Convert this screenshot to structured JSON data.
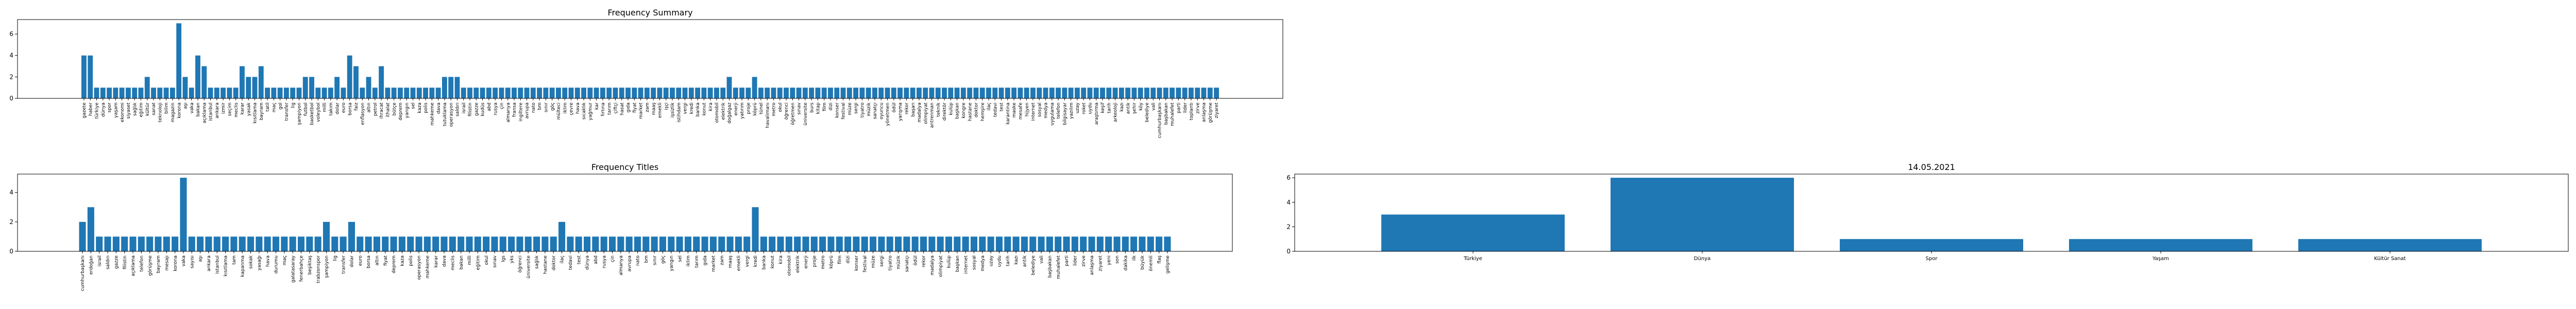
{
  "chart_data": [
    {
      "type": "bar",
      "title": "Frequency Summary",
      "color": "#1f77b4",
      "categories": [
        "gazete",
        "haber",
        "türkiye",
        "dünya",
        "spor",
        "yaşam",
        "ekonomi",
        "siyaset",
        "sağlık",
        "eğitim",
        "kültür",
        "sanat",
        "teknoloji",
        "bilim",
        "magazin",
        "korona",
        "aşı",
        "vaka",
        "bakan",
        "açıklama",
        "istanbul",
        "ankara",
        "izmir",
        "seçim",
        "meclis",
        "karar",
        "yasak",
        "kısıtlama",
        "bayram",
        "tatil",
        "maç",
        "gol",
        "transfer",
        "lig",
        "şampiyon",
        "futbol",
        "basketbol",
        "voleybol",
        "milli",
        "takım",
        "dolar",
        "euro",
        "borsa",
        "faiz",
        "enflasyon",
        "altın",
        "petrol",
        "ihracat",
        "ithalat",
        "bütçe",
        "deprem",
        "yangın",
        "sel",
        "kaza",
        "polis",
        "mahkeme",
        "dava",
        "tutuklama",
        "operasyon",
        "saldırı",
        "israil",
        "filistin",
        "gazze",
        "kudüs",
        "abd",
        "rusya",
        "çin",
        "almanya",
        "fransa",
        "ingiltere",
        "avrupa",
        "nato",
        "bm",
        "sınır",
        "göç",
        "mülteci",
        "iklim",
        "çevre",
        "hava",
        "sıcaklık",
        "yağmur",
        "kar",
        "fırtına",
        "tarım",
        "çiftçi",
        "hasat",
        "gıda",
        "fiyat",
        "market",
        "zam",
        "maaş",
        "emekli",
        "işçi",
        "işsizlik",
        "istihdam",
        "vergi",
        "kredi",
        "banka",
        "konut",
        "kira",
        "otomobil",
        "elektrik",
        "doğalgaz",
        "enerji",
        "yatırım",
        "proje",
        "köprü",
        "tünel",
        "havalimanı",
        "metro",
        "okul",
        "öğrenci",
        "öğretmen",
        "sınav",
        "üniversite",
        "burs",
        "kitap",
        "film",
        "dizi",
        "konser",
        "festival",
        "müze",
        "sergi",
        "tiyatro",
        "müzik",
        "sanatçı",
        "oyuncu",
        "yönetmen",
        "ödül",
        "yarışma",
        "rekor",
        "başarı",
        "madalya",
        "olimpiyat",
        "antrenman",
        "teknik",
        "direktör",
        "kulüp",
        "başkan",
        "kongre",
        "hastane",
        "doktor",
        "hemşire",
        "ilaç",
        "tedavi",
        "test",
        "karantina",
        "maske",
        "mesafe",
        "hijyen",
        "internet",
        "sosyal",
        "medya",
        "uygulama",
        "telefon",
        "bilgisayar",
        "yazılım",
        "uzay",
        "roket",
        "uydu",
        "araştırma",
        "keşif",
        "tarih",
        "arkeoloji",
        "kazı",
        "antik",
        "şehir",
        "köy",
        "belediye",
        "vali",
        "cumhurbaşkanı",
        "başbakan",
        "muhalefet",
        "parti",
        "lider",
        "toplantı",
        "zirve",
        "anlaşma",
        "görüşme",
        "ziyaret"
      ],
      "values": [
        4,
        4,
        1,
        1,
        1,
        1,
        1,
        1,
        1,
        1,
        2,
        1,
        1,
        1,
        1,
        7,
        2,
        1,
        4,
        3,
        1,
        1,
        1,
        1,
        1,
        3,
        2,
        2,
        3,
        1,
        1,
        1,
        1,
        1,
        1,
        2,
        2,
        1,
        1,
        1,
        2,
        1,
        4,
        3,
        1,
        2,
        1,
        3,
        1,
        1,
        1,
        1,
        1,
        1,
        1,
        1,
        1,
        2,
        2,
        2,
        1,
        1,
        1,
        1,
        1,
        1,
        1,
        1,
        1,
        1,
        1,
        1,
        1,
        1,
        1,
        1,
        1,
        1,
        1,
        1,
        1,
        1,
        1,
        1,
        1,
        1,
        1,
        1,
        1,
        1,
        1,
        1,
        1,
        1,
        1,
        1,
        1,
        1,
        1,
        1,
        1,
        1,
        2,
        1,
        1,
        1,
        2,
        1,
        1,
        1,
        1,
        1,
        1,
        1,
        1,
        1,
        1,
        1,
        1,
        1,
        1,
        1,
        1,
        1,
        1,
        1,
        1,
        1,
        1,
        1,
        1,
        1,
        1,
        1,
        1,
        1,
        1,
        1,
        1,
        1,
        1,
        1,
        1,
        1,
        1,
        1,
        1,
        1,
        1,
        1,
        1,
        1,
        1,
        1,
        1,
        1,
        1,
        1,
        1,
        1,
        1,
        1,
        1,
        1,
        1,
        1,
        1,
        1,
        1,
        1,
        1,
        1,
        1,
        1,
        1,
        1,
        1,
        1,
        1,
        1
      ],
      "ylim": [
        0,
        7.35
      ],
      "yticks": [
        0,
        2,
        4,
        6
      ]
    },
    {
      "type": "bar",
      "title": "Frequency Titles",
      "color": "#1f77b4",
      "categories": [
        "cumhurbaşkanı",
        "erdoğan",
        "israil",
        "saldırı",
        "gazze",
        "filistin",
        "açıklama",
        "telefon",
        "görüşme",
        "bayram",
        "mesajı",
        "korona",
        "vaka",
        "sayısı",
        "aşı",
        "ankara",
        "istanbul",
        "kısıtlama",
        "tam",
        "kapanma",
        "sokak",
        "yasağı",
        "hava",
        "durumu",
        "maç",
        "galatasaray",
        "fenerbahçe",
        "beşiktaş",
        "trabzonspor",
        "şampiyon",
        "lig",
        "transfer",
        "dolar",
        "euro",
        "borsa",
        "altın",
        "fiyat",
        "deprem",
        "kaza",
        "polis",
        "operasyon",
        "mahkeme",
        "karar",
        "dava",
        "meclis",
        "bakan",
        "milli",
        "eğitim",
        "okul",
        "sınav",
        "lgs",
        "yks",
        "öğrenci",
        "üniversite",
        "sağlık",
        "hastane",
        "doktor",
        "ilaç",
        "tedavi",
        "test",
        "dünya",
        "abd",
        "rusya",
        "çin",
        "almanya",
        "avrupa",
        "nato",
        "bm",
        "sınır",
        "göç",
        "yangın",
        "sel",
        "iklim",
        "tarım",
        "gıda",
        "market",
        "zam",
        "maaş",
        "emekli",
        "vergi",
        "kredi",
        "banka",
        "konut",
        "kira",
        "otomobil",
        "elektrik",
        "enerji",
        "proje",
        "metro",
        "köprü",
        "film",
        "dizi",
        "konser",
        "festival",
        "müze",
        "sergi",
        "tiyatro",
        "müzik",
        "sanatçı",
        "ödül",
        "rekor",
        "madalya",
        "olimpiyat",
        "kulüp",
        "başkan",
        "internet",
        "sosyal",
        "medya",
        "uzay",
        "uydu",
        "tarih",
        "kazı",
        "antik",
        "belediye",
        "vali",
        "başbakan",
        "muhalefet",
        "parti",
        "lider",
        "zirve",
        "anlaşma",
        "ziyaret",
        "yeni",
        "son",
        "dakika",
        "ilk",
        "büyük",
        "önemli",
        "flaş",
        "gelişme"
      ],
      "values": [
        2,
        3,
        1,
        1,
        1,
        1,
        1,
        1,
        1,
        1,
        1,
        1,
        5,
        1,
        1,
        1,
        1,
        1,
        1,
        1,
        1,
        1,
        1,
        1,
        1,
        1,
        1,
        1,
        1,
        2,
        1,
        1,
        2,
        1,
        1,
        1,
        1,
        1,
        1,
        1,
        1,
        1,
        1,
        1,
        1,
        1,
        1,
        1,
        1,
        1,
        1,
        1,
        1,
        1,
        1,
        1,
        1,
        2,
        1,
        1,
        1,
        1,
        1,
        1,
        1,
        1,
        1,
        1,
        1,
        1,
        1,
        1,
        1,
        1,
        1,
        1,
        1,
        1,
        1,
        1,
        3,
        1,
        1,
        1,
        1,
        1,
        1,
        1,
        1,
        1,
        1,
        1,
        1,
        1,
        1,
        1,
        1,
        1,
        1,
        1,
        1,
        1,
        1,
        1,
        1,
        1,
        1,
        1,
        1,
        1,
        1,
        1,
        1,
        1,
        1,
        1,
        1,
        1,
        1,
        1,
        1,
        1,
        1,
        1,
        1,
        1,
        1,
        1,
        1,
        1
      ],
      "ylim": [
        0,
        5.25
      ],
      "yticks": [
        0,
        2,
        4
      ]
    },
    {
      "type": "bar",
      "title": "14.05.2021",
      "color": "#1f77b4",
      "categories": [
        "Türkiye",
        "Dünya",
        "Spor",
        "Yaşam",
        "Kültür Sanat"
      ],
      "values": [
        3,
        6,
        1,
        1,
        1
      ],
      "ylim": [
        0,
        6.3
      ],
      "yticks": [
        0,
        2,
        4,
        6
      ]
    }
  ]
}
